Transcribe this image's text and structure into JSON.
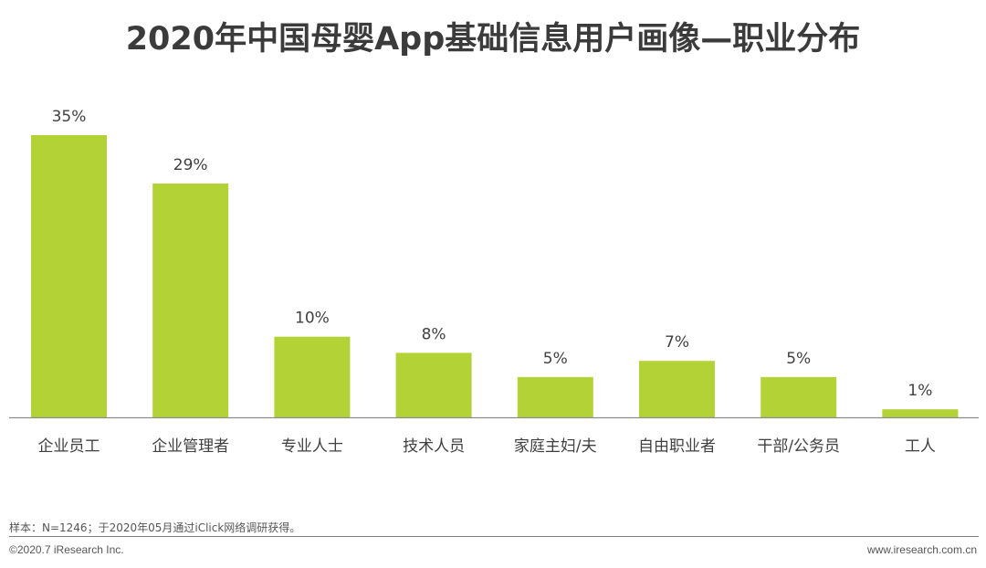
{
  "chart_data": {
    "type": "bar",
    "title": "2020年中国母婴App基础信息用户画像—职业分布",
    "categories": [
      "企业员工",
      "企业管理者",
      "专业人士",
      "技术人员",
      "家庭主妇/夫",
      "自由职业者",
      "干部/公务员",
      "工人"
    ],
    "values": [
      35,
      29,
      10,
      8,
      5,
      7,
      5,
      1
    ],
    "value_labels": [
      "35%",
      "29%",
      "10%",
      "8%",
      "5%",
      "7%",
      "5%",
      "1%"
    ],
    "unit": "%",
    "xlabel": "",
    "ylabel": "",
    "ylim": [
      0,
      35
    ],
    "grid": false,
    "bar_color": "#b2d235"
  },
  "footer": {
    "note": "样本：N=1246；于2020年05月通过iClick网络调研获得。",
    "copyright": "©2020.7 iResearch Inc.",
    "website": "www.iresearch.com.cn"
  }
}
